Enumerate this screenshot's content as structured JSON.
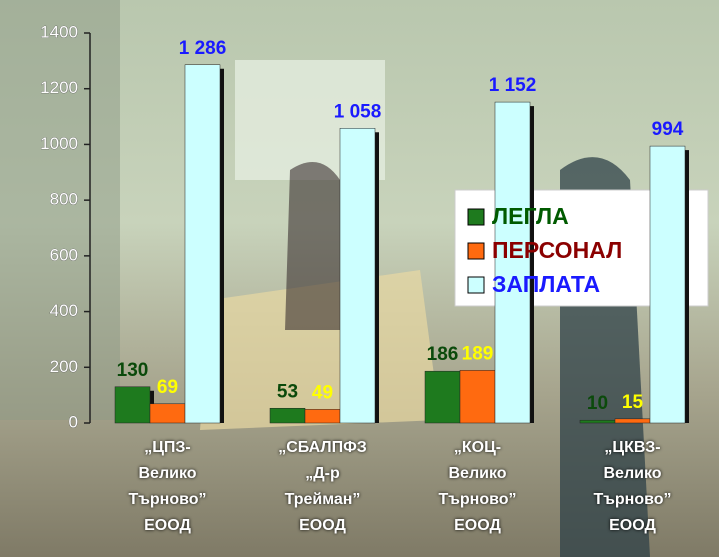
{
  "chart_data": {
    "type": "bar",
    "categories": [
      "„ЦПЗ-\nВелико\nТърново”\nЕООД",
      "„СБАЛПФЗ\n„Д-р\nТрейман”\nЕООД",
      "„КОЦ-\nВелико\nТърново”\nЕООД",
      "„ЦКВЗ-\nВелико\nТърново”\nЕООД"
    ],
    "series": [
      {
        "name": "ЛЕГЛА",
        "color": "#1e7a1e",
        "label_color": "#0b4a0b",
        "legend_color": "#005a00",
        "values": [
          130,
          53,
          186,
          10
        ]
      },
      {
        "name": "ПЕРСОНАЛ",
        "color": "#ff6a10",
        "label_color": "#ffff00",
        "legend_color": "#8b0000",
        "values": [
          69,
          49,
          189,
          15
        ]
      },
      {
        "name": "ЗАПЛАТА",
        "color": "#ccffff",
        "label_color": "#1a1aff",
        "legend_color": "#1a1aff",
        "values": [
          1286,
          1058,
          1152,
          994
        ],
        "value_labels": [
          "1 286",
          "1 058",
          "1 152",
          "994"
        ]
      }
    ],
    "ylim": [
      0,
      1400
    ],
    "yticks": [
      0,
      200,
      400,
      600,
      800,
      1000,
      1200,
      1400
    ]
  }
}
